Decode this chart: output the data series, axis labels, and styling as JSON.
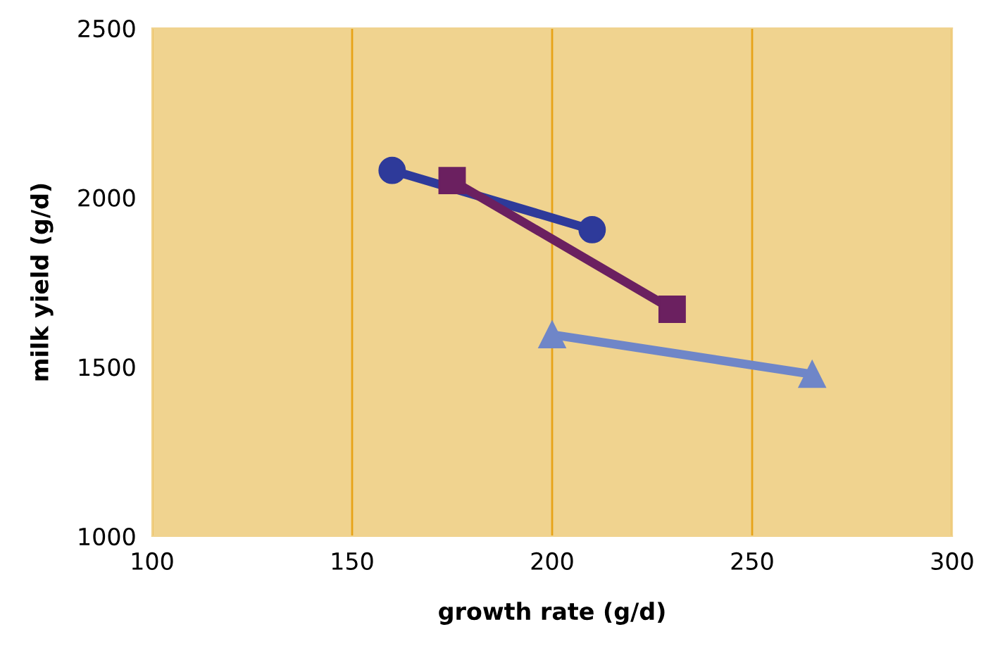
{
  "chart_data": {
    "type": "line",
    "xlabel": "growth rate (g/d)",
    "ylabel": "milk yield (g/d)",
    "xlim": [
      100,
      300
    ],
    "xticks": [
      100,
      150,
      200,
      250,
      300
    ],
    "ylim": [
      1000,
      2500
    ],
    "yticks": [
      1000,
      1500,
      2000,
      2500
    ],
    "grid": "x",
    "series": [
      {
        "color": "#2e3a9a",
        "marker": "circle",
        "x": [
          160,
          210
        ],
        "values": [
          2080,
          1905
        ]
      },
      {
        "color": "#6b2060",
        "marker": "square",
        "x": [
          175,
          230
        ],
        "values": [
          2050,
          1670
        ]
      },
      {
        "color": "#6f86c8",
        "marker": "triangle",
        "x": [
          200,
          265
        ],
        "values": [
          1595,
          1478
        ]
      }
    ]
  }
}
